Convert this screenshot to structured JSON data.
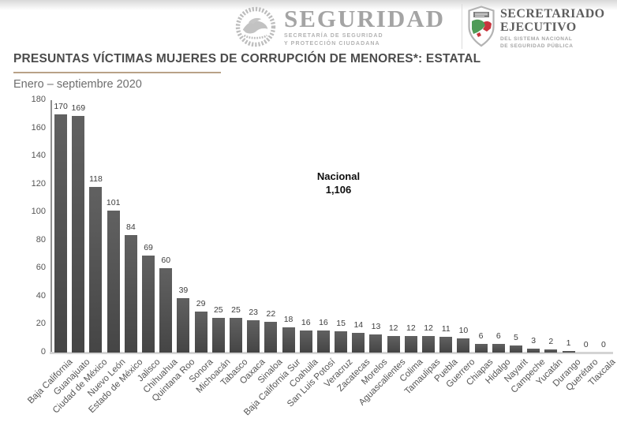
{
  "header": {
    "brand": {
      "name": "SEGURIDAD",
      "sub1": "SECRETARÍA DE SEGURIDAD",
      "sub2": "Y PROTECCIÓN CIUDADANA"
    },
    "secretariado": {
      "line1": "SECRETARIADO",
      "line2": "EJECUTIVO",
      "sub1": "DEL SISTEMA NACIONAL",
      "sub2": "DE SEGURIDAD PÚBLICA"
    }
  },
  "title": "PRESUNTAS VÍCTIMAS MUJERES DE CORRUPCIÓN DE MENORES*: ESTATAL",
  "subtitle": "Enero – septiembre 2020",
  "annotation": {
    "label": "Nacional",
    "value": "1,106"
  },
  "colors": {
    "bar_top": "#616161",
    "bar_bottom": "#454545",
    "title_text": "#4c4c4c",
    "title_underline": "#b9a287",
    "axis_line": "#8f8f8f",
    "baseline": "#d4d4d4",
    "shield_green": "#4f9b57",
    "shield_red": "#c8353d"
  },
  "chart_data": {
    "type": "bar",
    "title": "PRESUNTAS VÍCTIMAS MUJERES DE CORRUPCIÓN DE MENORES*: ESTATAL",
    "subtitle": "Enero – septiembre 2020",
    "categories": [
      "Baja California",
      "Guanajuato",
      "Ciudad de México",
      "Nuevo León",
      "Estado de México",
      "Jalisco",
      "Chihuahua",
      "Quintana Roo",
      "Sonora",
      "Michoacán",
      "Tabasco",
      "Oaxaca",
      "Sinaloa",
      "Baja California Sur",
      "Coahuila",
      "San Luis Potosí",
      "Veracruz",
      "Zacatecas",
      "Morelos",
      "Aguascalientes",
      "Colima",
      "Tamaulipas",
      "Puebla",
      "Guerrero",
      "Chiapas",
      "Hidalgo",
      "Nayarit",
      "Campeche",
      "Yucatán",
      "Durango",
      "Querétaro",
      "Tlaxcala"
    ],
    "values": [
      170,
      169,
      118,
      101,
      84,
      69,
      60,
      39,
      29,
      25,
      25,
      23,
      22,
      18,
      16,
      16,
      15,
      14,
      13,
      12,
      12,
      12,
      11,
      10,
      6,
      6,
      5,
      3,
      2,
      1,
      0,
      0
    ],
    "xlabel": "",
    "ylabel": "",
    "ylim": [
      0,
      180
    ],
    "yticks": [
      0,
      20,
      40,
      60,
      80,
      100,
      120,
      140,
      160,
      180
    ],
    "grid": false,
    "legend": false,
    "annotation_label": "Nacional",
    "annotation_value": "1,106",
    "national_total": 1106
  }
}
